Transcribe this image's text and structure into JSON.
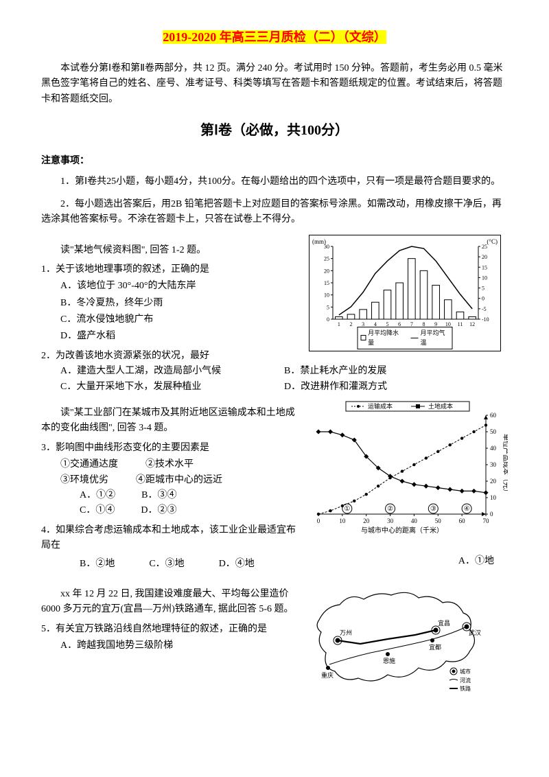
{
  "title_highlight": "2019-2020 年高三三月质检（二）（文综）",
  "intro": "本试卷分第Ⅰ卷和第Ⅱ卷两部分，共 12 页。满分 240 分。考试用时 150 分钟。答题前，考生务必用 0.5 毫米黑色签字笔将自己的姓名、座号、准考证号、科类等填写在答题卡和答题纸规定的位置。考试结束后，将答题卡和答题纸交回。",
  "section_title": "第Ⅰ卷（必做，共100分）",
  "notice_label": "注意事项：",
  "notice_1": "1．第Ⅰ卷共25小题，每小题4分，共100分。在每小题给出的四个选项中，只有一项是最符合题目要求的。",
  "notice_2": "2．每小题选出答案后，用2B 铅笔把答题卡上对应题目的答案标号涂黑。如需改动，用橡皮擦干净后，再选涂其他答案标号。不涂在答题卡上，只答在试卷上不得分。",
  "q_intro_12": "读\"某地气候资料图\", 回答 1-2 题。",
  "q1_stem": "1．关于该地地理事项的叙述，正确的是",
  "q1_a": "A．该地位于 30°-40°的大陆东岸",
  "q1_b": "B．冬冷夏热，终年少雨",
  "q1_c": "C．流水侵蚀地貌广布",
  "q1_d": "D．盛产水稻",
  "q2_stem": "2．为改善该地水资源紧张的状况，最好",
  "q2_a": "A．建造大型人工湖，改造局部小气候",
  "q2_b": "B．禁止耗水产业的发展",
  "q2_c": "C．大量开采地下水，发展种植业",
  "q2_d": "D．改进耕作和灌溉方式",
  "q_intro_34": "读\"某工业部门在某城市及其附近地区运输成本和土地成本的变化曲线图\", 回答 3-4 题。",
  "q3_stem": "3．影响图中曲线形态变化的主要因素是",
  "q3_1": "①交通通达度",
  "q3_2": "②技术水平",
  "q3_3": "③环境优劣",
  "q3_4": "④距城市中心的远近",
  "q3_a": "A．①②",
  "q3_b": "B．③④",
  "q3_c": "C．①④",
  "q3_d": "D．②③",
  "q4_stem": "4．如果综合考虑运输成本和土地成本，该工业企业最适宜布局在",
  "q4_a": "A．①地",
  "q4_b": "B．②地",
  "q4_c": "C．③地",
  "q4_d": "D．④地",
  "q_intro_56": "xx 年 12 月 22 日, 我国建设难度最大、平均每公里造价6000 多万元的宜万(宜昌—万州)铁路通车, 据此回答 5-6 题。",
  "q5_stem": "5．有关宜万铁路沿线自然地理特征的叙述，正确的是",
  "q5_a": "A．跨越我国地势三级阶梯",
  "chart1": {
    "left_unit": "(mm)",
    "right_unit": "(°C)",
    "left_ticks": [
      0,
      5,
      10,
      15,
      20,
      25,
      30
    ],
    "right_ticks": [
      -10,
      -5,
      0,
      5,
      10,
      15,
      20,
      25
    ],
    "x_labels": [
      "1",
      "2",
      "3",
      "4",
      "5",
      "6",
      "7",
      "8",
      "9",
      "10",
      "11",
      "12"
    ],
    "precip_values": [
      1,
      2,
      4,
      7,
      12,
      15,
      25,
      20,
      14,
      8,
      3,
      1
    ],
    "temp_values": [
      -8,
      -4,
      3,
      12,
      18,
      23,
      25,
      24,
      18,
      10,
      2,
      -5
    ],
    "legend_precip": "月平均降水量",
    "legend_temp": "月平均气温",
    "bar_color": "#ffffff",
    "bar_border": "#000000",
    "line_color": "#000000",
    "bg": "#ffffff"
  },
  "chart2": {
    "legend_transport": "运输成本",
    "legend_land": "土地成本",
    "x_label": "与城市中心的距离（千米）",
    "y_label": "单位产品成本（元）",
    "x_ticks": [
      0,
      10,
      20,
      30,
      40,
      50,
      60,
      70
    ],
    "y_ticks": [
      0,
      10,
      20,
      30,
      40,
      50,
      60
    ],
    "transport_x": [
      0,
      5,
      10,
      15,
      20,
      25,
      30,
      35,
      40,
      45,
      50,
      55,
      60,
      65,
      70
    ],
    "transport_y": [
      0,
      2,
      5,
      8,
      12,
      17,
      22,
      26,
      30,
      34,
      38,
      42,
      46,
      50,
      54
    ],
    "land_x": [
      0,
      5,
      10,
      15,
      20,
      25,
      30,
      35,
      40,
      45,
      50,
      55,
      60,
      65,
      70
    ],
    "land_y": [
      50,
      50,
      48,
      45,
      35,
      28,
      23,
      20,
      18,
      17,
      16,
      15,
      14,
      14,
      13
    ],
    "markers": [
      "①",
      "②",
      "③",
      "④"
    ],
    "marker_x": [
      12,
      30,
      48,
      62
    ]
  },
  "map": {
    "cities": [
      "万州",
      "宜昌",
      "武汉",
      "宜都",
      "恩施",
      "重庆"
    ],
    "legend_city": "城市",
    "legend_river": "河流",
    "legend_rail": "铁路"
  }
}
